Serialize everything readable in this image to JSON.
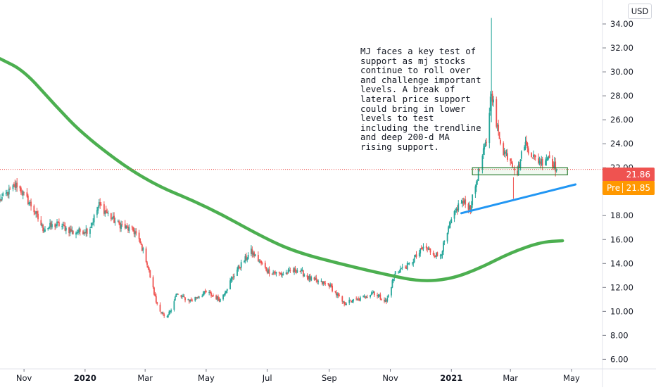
{
  "currency_button": "USD",
  "annotation": "MJ faces a key test of support as mj stocks continue to roll over and challenge important levels. A break of lateral price support could bring in lower levels to test including the trendline and deep 200-d MA rising support.",
  "price_labels": {
    "last_price": "21.86",
    "premarket_label": "Pre",
    "premarket_price": "21.85"
  },
  "colors": {
    "up": "#26a69a",
    "down": "#ef5350",
    "ma": "#4caf50",
    "trendline": "#2196f3",
    "support_box": "#2e7d32",
    "last_price_line": "#ef5350",
    "premarket": "#ff9800"
  },
  "chart_data": {
    "type": "candlestick",
    "title": "",
    "currency": "USD",
    "ylim": [
      5.2,
      36.0
    ],
    "y_ticks": [
      6,
      8,
      10,
      12,
      14,
      16,
      18,
      20,
      22,
      24,
      26,
      28,
      30,
      32,
      34
    ],
    "y_tick_labels": [
      "6.00",
      "8.00",
      "10.00",
      "12.00",
      "14.00",
      "16.00",
      "18.00",
      "20.00",
      "22.00",
      "24.00",
      "26.00",
      "28.00",
      "30.00",
      "32.00",
      "34.00"
    ],
    "x_range": [
      "2019-10-08",
      "2021-06-01"
    ],
    "x_ticks": [
      "2019-11-01",
      "2020-01-01",
      "2020-03-01",
      "2020-05-01",
      "2020-07-01",
      "2020-09-01",
      "2020-11-01",
      "2021-01-01",
      "2021-03-01",
      "2021-05-01"
    ],
    "x_tick_labels": [
      "Nov",
      "2020",
      "Mar",
      "May",
      "Jul",
      "Sep",
      "Nov",
      "2021",
      "Mar",
      "May"
    ],
    "bold_tick_labels": [
      "2020",
      "2021"
    ],
    "price_path": [
      [
        "2019-10-08",
        19.3
      ],
      [
        "2019-10-25",
        20.6
      ],
      [
        "2019-11-10",
        18.6
      ],
      [
        "2019-11-20",
        16.9
      ],
      [
        "2019-12-05",
        17.3
      ],
      [
        "2019-12-20",
        16.6
      ],
      [
        "2020-01-05",
        16.8
      ],
      [
        "2020-01-15",
        18.9
      ],
      [
        "2020-02-01",
        17.4
      ],
      [
        "2020-02-20",
        16.6
      ],
      [
        "2020-03-01",
        14.7
      ],
      [
        "2020-03-12",
        10.8
      ],
      [
        "2020-03-22",
        9.2
      ],
      [
        "2020-04-01",
        11.4
      ],
      [
        "2020-04-15",
        10.9
      ],
      [
        "2020-05-01",
        11.6
      ],
      [
        "2020-05-15",
        11.0
      ],
      [
        "2020-06-01",
        13.5
      ],
      [
        "2020-06-15",
        15.0
      ],
      [
        "2020-07-01",
        13.4
      ],
      [
        "2020-07-15",
        13.1
      ],
      [
        "2020-08-01",
        13.5
      ],
      [
        "2020-08-15",
        12.6
      ],
      [
        "2020-09-01",
        12.2
      ],
      [
        "2020-09-15",
        10.7
      ],
      [
        "2020-10-01",
        11.0
      ],
      [
        "2020-10-15",
        11.6
      ],
      [
        "2020-10-28",
        10.8
      ],
      [
        "2020-11-06",
        13.3
      ],
      [
        "2020-11-20",
        13.9
      ],
      [
        "2020-12-05",
        15.4
      ],
      [
        "2020-12-20",
        14.5
      ],
      [
        "2021-01-01",
        17.5
      ],
      [
        "2021-01-10",
        19.2
      ],
      [
        "2021-01-20",
        18.7
      ],
      [
        "2021-01-28",
        21.6
      ],
      [
        "2021-02-05",
        24.2
      ],
      [
        "2021-02-10",
        28.6
      ],
      [
        "2021-02-15",
        25.5
      ],
      [
        "2021-02-22",
        23.4
      ],
      [
        "2021-03-01",
        22.7
      ],
      [
        "2021-03-08",
        21.6
      ],
      [
        "2021-03-15",
        24.1
      ],
      [
        "2021-03-25",
        22.8
      ],
      [
        "2021-04-01",
        22.5
      ],
      [
        "2021-04-08",
        23.0
      ],
      [
        "2021-04-16",
        21.86
      ]
    ],
    "spikes": [
      {
        "date": "2021-02-10",
        "high": 34.5,
        "low": 25.8
      },
      {
        "date": "2021-03-04",
        "high": 21.2,
        "low": 19.4
      }
    ],
    "moving_average": {
      "period": 200,
      "points": [
        [
          "2019-10-08",
          31.1
        ],
        [
          "2019-11-01",
          30.1
        ],
        [
          "2019-12-01",
          27.3
        ],
        [
          "2020-01-01",
          24.6
        ],
        [
          "2020-03-01",
          20.9
        ],
        [
          "2020-05-01",
          18.8
        ],
        [
          "2020-07-01",
          16.0
        ],
        [
          "2020-08-01",
          14.9
        ],
        [
          "2020-09-15",
          13.9
        ],
        [
          "2020-11-01",
          13.0
        ],
        [
          "2020-12-01",
          12.5
        ],
        [
          "2021-01-01",
          12.7
        ],
        [
          "2021-02-01",
          13.7
        ],
        [
          "2021-03-01",
          14.9
        ],
        [
          "2021-04-01",
          15.8
        ],
        [
          "2021-04-22",
          15.9
        ]
      ]
    },
    "trendline": {
      "from": [
        "2021-01-11",
        18.2
      ],
      "to": [
        "2021-05-05",
        20.6
      ]
    },
    "support_zone": {
      "from_date": "2021-01-22",
      "to_date": "2021-04-27",
      "low": 21.4,
      "high": 22.0
    },
    "last_price": 21.86,
    "premarket_price": 21.85
  }
}
